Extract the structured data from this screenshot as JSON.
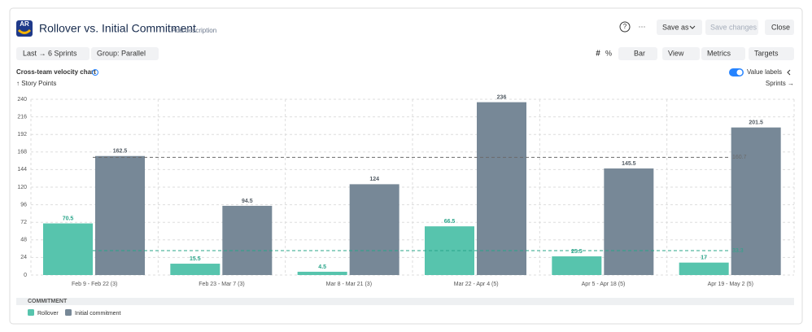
{
  "ui": {
    "title": "Rollover vs. Initial Commitment",
    "add_description": "Add description",
    "help": "?",
    "more": "···",
    "save_as": "Save as",
    "save_changes": "Save changes",
    "close": "Close",
    "range": "Last → 6 Sprints",
    "group": "Group: Parallel",
    "hash": "#",
    "percent": "%",
    "chart_kind": "Bar",
    "view": "View",
    "metrics": "Metrics",
    "targets": "Targets",
    "section": "Cross-team velocity chart",
    "value_labels_toggle": "Value labels",
    "legend_header": "COMMITMENT"
  },
  "chart_data": {
    "type": "bar",
    "ylabel": "↑ Story Points",
    "xlabel": "Sprints →",
    "categories": [
      "Feb 9 - Feb 22 (3)",
      "Feb 23 - Mar 7 (3)",
      "Mar 8 - Mar 21 (3)",
      "Mar 22 - Apr 4 (5)",
      "Apr 5 - Apr 18 (5)",
      "Apr 19 - May 2 (5)"
    ],
    "series": [
      {
        "name": "Rollover",
        "color": "#57c4ad",
        "label_color": "#2aa58a",
        "values": [
          70.5,
          15.5,
          4.5,
          66.5,
          25.5,
          17
        ]
      },
      {
        "name": "Initial commitment",
        "color": "#778897",
        "label_color": "#555e66",
        "values": [
          162.5,
          94.5,
          124,
          236,
          145.5,
          201.5
        ]
      }
    ],
    "reference_lines": [
      {
        "value": 160.7,
        "color": "#6b6b6b"
      },
      {
        "value": 33.3,
        "color": "#2aa58a"
      }
    ],
    "ylim": [
      0,
      240
    ],
    "yticks": [
      0,
      24,
      48,
      72,
      96,
      120,
      144,
      168,
      192,
      216,
      240
    ],
    "grid": true,
    "value_labels": true
  }
}
